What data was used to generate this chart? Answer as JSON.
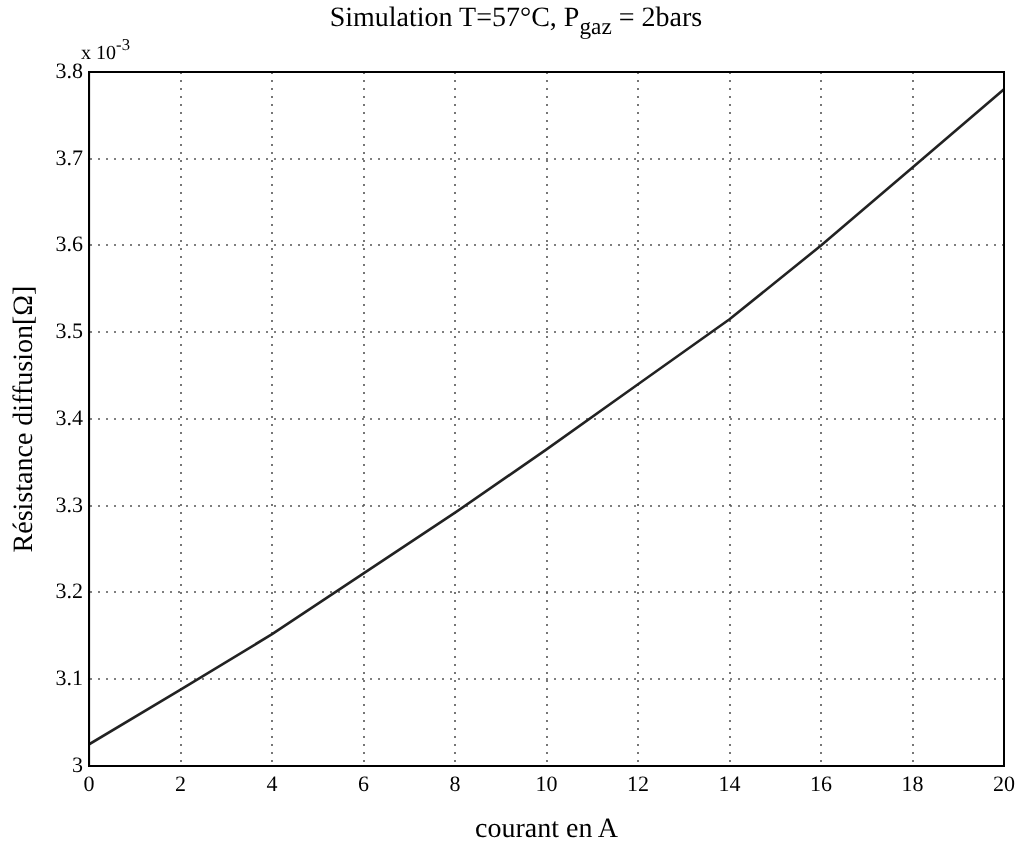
{
  "chart_data": {
    "type": "line",
    "title": "Simulation T=57°C, P$_{gaz}$ = 2bars",
    "xlabel": "courant en A",
    "ylabel": "Résistance diffusion[Ω]",
    "annotations": [
      "x 10$^{-3}$"
    ],
    "x": [
      0,
      2,
      4,
      6,
      8,
      10,
      12,
      14,
      16,
      18,
      20
    ],
    "series": [
      {
        "color": "#222222",
        "values": [
          3.025,
          3.088,
          3.152,
          3.222,
          3.292,
          3.365,
          3.44,
          3.515,
          3.6,
          3.69,
          3.78
        ]
      }
    ],
    "xlim": [
      0,
      20
    ],
    "xticks": [
      0,
      2,
      4,
      6,
      8,
      10,
      12,
      14,
      16,
      18,
      20
    ],
    "ylim": [
      3,
      3.8
    ],
    "yticks": [
      3,
      3.1,
      3.2,
      3.3,
      3.4,
      3.5,
      3.6,
      3.7,
      3.8
    ],
    "grid": true,
    "legend": false,
    "marker": "none",
    "line_style": "solid"
  }
}
